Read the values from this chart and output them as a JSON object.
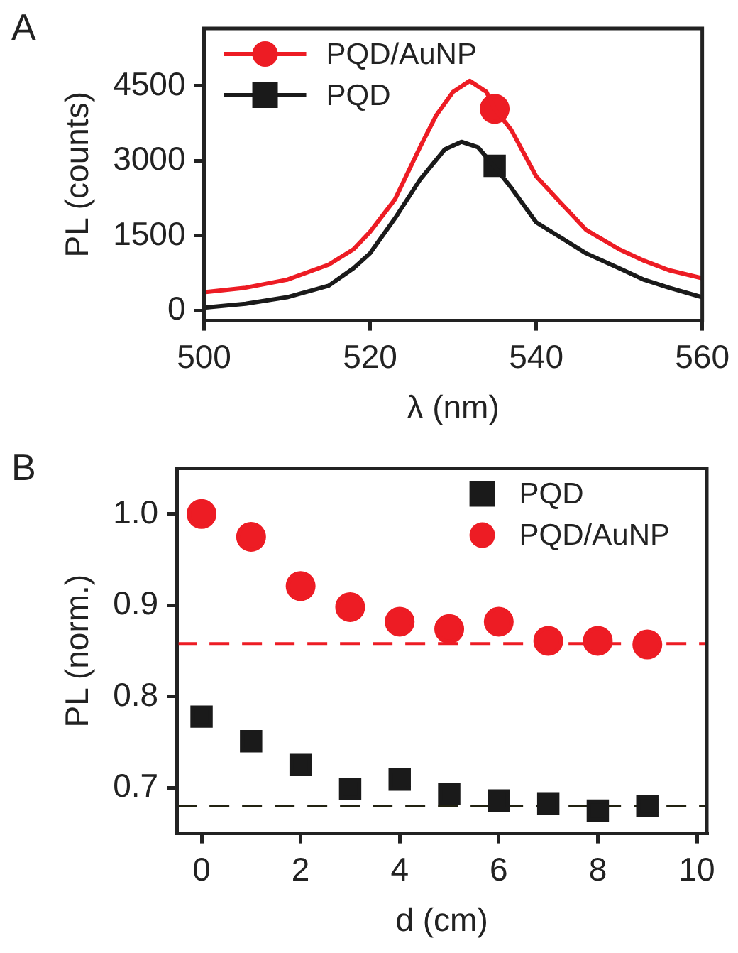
{
  "chart_data": [
    {
      "type": "line",
      "title": "A",
      "xlabel": "λ (nm)",
      "ylabel": "PL (counts)",
      "xlim": [
        500,
        560
      ],
      "xticks": [
        500,
        520,
        540,
        560
      ],
      "ylim": [
        -200,
        5650
      ],
      "yticks": [
        0,
        1500,
        3000,
        4500
      ],
      "grid": false,
      "legend": "top left",
      "marker": "none",
      "series": [
        {
          "name": "PQD/AuNP",
          "color": "#ed1c24",
          "x": [
            500,
            505,
            510,
            515,
            518,
            520,
            523,
            526,
            528,
            530,
            532,
            534,
            535,
            537,
            540,
            543,
            546,
            550,
            553,
            556,
            560
          ],
          "values": [
            370,
            460,
            620,
            920,
            1230,
            1580,
            2230,
            3270,
            3920,
            4380,
            4600,
            4380,
            4040,
            3620,
            2690,
            2150,
            1620,
            1230,
            1000,
            810,
            650
          ]
        },
        {
          "name": "PQD",
          "color": "#1a1a1a",
          "x": [
            500,
            505,
            510,
            515,
            518,
            520,
            523,
            526,
            529,
            531,
            533,
            535,
            537,
            540,
            543,
            546,
            550,
            553,
            556,
            560
          ],
          "values": [
            60,
            140,
            270,
            500,
            850,
            1150,
            1850,
            2620,
            3230,
            3380,
            3270,
            2880,
            2460,
            1770,
            1460,
            1150,
            850,
            620,
            460,
            270
          ]
        },
        {
          "type": "scatter",
          "marker": "circle",
          "color": "#ed1c24",
          "x": [
            535
          ],
          "values": [
            4040
          ]
        },
        {
          "type": "scatter",
          "marker": "square",
          "color": "#1a1a1a",
          "x": [
            535
          ],
          "values": [
            2900
          ]
        }
      ]
    },
    {
      "type": "scatter",
      "title": "B",
      "xlabel": "d (cm)",
      "ylabel": "PL (norm.)",
      "xlim": [
        -0.5,
        10.2
      ],
      "xticks": [
        0,
        2,
        4,
        6,
        8,
        10
      ],
      "ylim": [
        0.65,
        1.05
      ],
      "yticks": [
        0.7,
        0.8,
        0.9,
        {
          "value": 1,
          "label": "1.0"
        }
      ],
      "grid": false,
      "legend": "top right",
      "series": [
        {
          "name": "PQD",
          "color": "#1a1a1a",
          "marker": "square",
          "x": [
            0,
            1,
            2,
            3,
            4,
            5,
            6,
            7,
            8,
            9
          ],
          "values": [
            0.778,
            0.751,
            0.725,
            0.699,
            0.709,
            0.693,
            0.686,
            0.683,
            0.675,
            0.68
          ]
        },
        {
          "name": "PQD/AuNP",
          "color": "#ed1c24",
          "marker": "circle",
          "x": [
            0,
            1,
            2,
            3,
            4,
            5,
            6,
            7,
            8,
            9
          ],
          "values": [
            1.0,
            0.975,
            0.921,
            0.898,
            0.882,
            0.874,
            0.882,
            0.861,
            0.861,
            0.857
          ]
        }
      ],
      "ref_lines": [
        {
          "axis": "y",
          "value": 0.858,
          "color": "#ed1c24",
          "line_style": "dashed"
        },
        {
          "axis": "y",
          "value": 0.68,
          "color": "#222211",
          "line_style": "dashed"
        }
      ]
    }
  ]
}
